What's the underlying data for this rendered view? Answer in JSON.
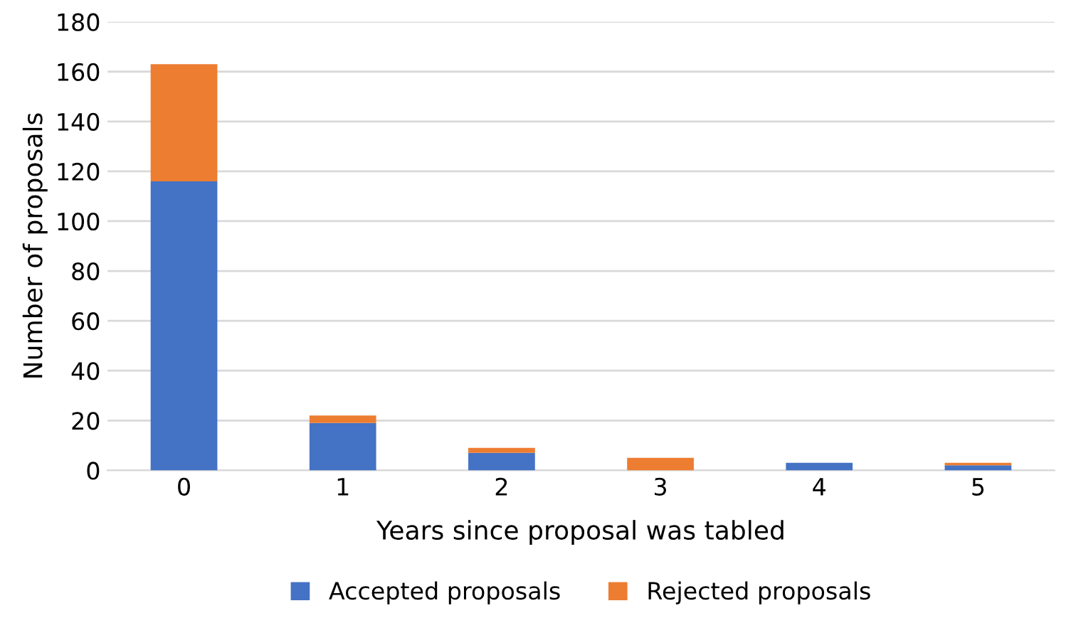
{
  "chart_data": {
    "type": "bar",
    "stacked": true,
    "xlabel": "Years since proposal was tabled",
    "ylabel": "Number of proposals",
    "categories": [
      "0",
      "1",
      "2",
      "3",
      "4",
      "5"
    ],
    "series": [
      {
        "name": "Accepted proposals",
        "color": "#4472c4",
        "values": [
          116,
          19,
          7,
          0,
          3,
          2
        ]
      },
      {
        "name": "Rejected proposals",
        "color": "#ed7d31",
        "values": [
          47,
          3,
          2,
          5,
          0,
          1
        ]
      }
    ],
    "ylim": [
      0,
      180
    ],
    "yticks": [
      0,
      20,
      40,
      60,
      80,
      100,
      120,
      140,
      160,
      180
    ],
    "grid": "y",
    "legend": "bottom"
  }
}
